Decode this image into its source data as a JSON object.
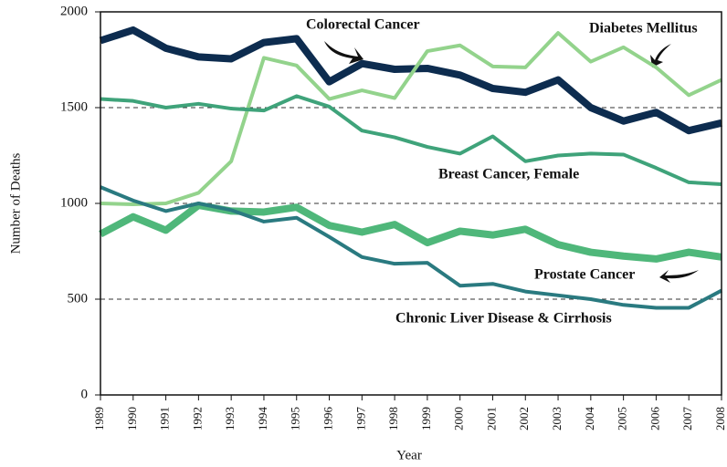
{
  "chart_data": {
    "type": "line",
    "x_label": "Year",
    "y_label": "Number of Deaths",
    "x": [
      1989,
      1990,
      1991,
      1992,
      1993,
      1994,
      1995,
      1996,
      1997,
      1998,
      1999,
      2000,
      2001,
      2002,
      2003,
      2004,
      2005,
      2006,
      2007,
      2008
    ],
    "xlim": [
      1989,
      2008
    ],
    "ylim": [
      0,
      2000
    ],
    "yticks": [
      0,
      500,
      1000,
      1500,
      2000
    ],
    "grid": true,
    "series": [
      {
        "name": "Colorectal Cancer",
        "color": "#0d2c4f",
        "values": [
          1850,
          1905,
          1810,
          1765,
          1755,
          1840,
          1860,
          1635,
          1730,
          1700,
          1705,
          1670,
          1600,
          1580,
          1645,
          1500,
          1430,
          1475,
          1380,
          1420
        ]
      },
      {
        "name": "Diabetes Mellitus",
        "color": "#93d38c",
        "values": [
          1000,
          995,
          1000,
          1055,
          1220,
          1760,
          1720,
          1545,
          1590,
          1550,
          1795,
          1825,
          1715,
          1710,
          1890,
          1740,
          1815,
          1710,
          1565,
          1645
        ]
      },
      {
        "name": "Breast Cancer, Female",
        "color": "#3fa37a",
        "values": [
          1545,
          1535,
          1500,
          1520,
          1495,
          1485,
          1560,
          1505,
          1380,
          1345,
          1295,
          1260,
          1350,
          1220,
          1250,
          1260,
          1255,
          1185,
          1110,
          1100
        ]
      },
      {
        "name": "Prostate Cancer",
        "color": "#4fb77a",
        "values": [
          840,
          930,
          860,
          990,
          960,
          955,
          980,
          885,
          850,
          890,
          795,
          855,
          835,
          865,
          785,
          745,
          725,
          710,
          745,
          720
        ]
      },
      {
        "name": "Chronic Liver Disease & Cirrhosis",
        "color": "#2a7a80",
        "values": [
          1085,
          1015,
          960,
          1000,
          965,
          905,
          925,
          825,
          720,
          685,
          690,
          570,
          580,
          540,
          520,
          500,
          470,
          455,
          455,
          545
        ]
      }
    ]
  }
}
